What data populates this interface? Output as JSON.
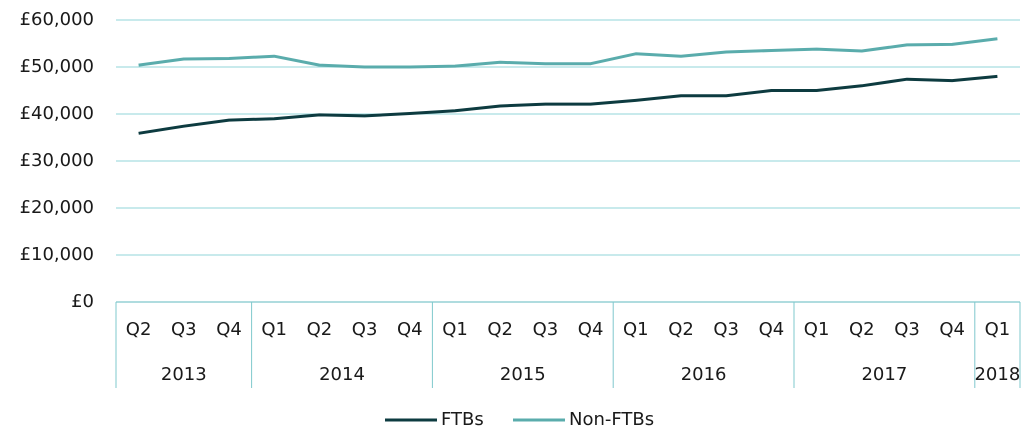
{
  "chart_data": {
    "type": "line",
    "categories": [
      "Q2",
      "Q3",
      "Q4",
      "Q1",
      "Q2",
      "Q3",
      "Q4",
      "Q1",
      "Q2",
      "Q3",
      "Q4",
      "Q1",
      "Q2",
      "Q3",
      "Q4",
      "Q1",
      "Q2",
      "Q3",
      "Q4",
      "Q1"
    ],
    "year_groups": [
      {
        "label": "2013",
        "count": 3
      },
      {
        "label": "2014",
        "count": 4
      },
      {
        "label": "2015",
        "count": 4
      },
      {
        "label": "2016",
        "count": 4
      },
      {
        "label": "2017",
        "count": 4
      },
      {
        "label": "2018",
        "count": 1
      }
    ],
    "series": [
      {
        "name": "FTBs",
        "color": "#0d3b40",
        "values": [
          35900,
          37400,
          38700,
          39000,
          39800,
          39600,
          40100,
          40700,
          41700,
          42100,
          42100,
          42900,
          43900,
          43900,
          45000,
          45000,
          46000,
          47400,
          47100,
          48000
        ]
      },
      {
        "name": "Non-FTBs",
        "color": "#5aacac",
        "values": [
          50400,
          51700,
          51800,
          52300,
          50400,
          50000,
          50000,
          50200,
          51000,
          50700,
          50700,
          52800,
          52300,
          53200,
          53500,
          53800,
          53400,
          54700,
          54800,
          56000
        ]
      }
    ],
    "ylim": [
      0,
      60000
    ],
    "yticks": [
      {
        "value": 0,
        "label": "£0"
      },
      {
        "value": 10000,
        "label": "£10,000"
      },
      {
        "value": 20000,
        "label": "£20,000"
      },
      {
        "value": 30000,
        "label": "£30,000"
      },
      {
        "value": 40000,
        "label": "£40,000"
      },
      {
        "value": 50000,
        "label": "£50,000"
      },
      {
        "value": 60000,
        "label": "£60,000"
      }
    ],
    "grid": true,
    "legend": "bottom"
  }
}
